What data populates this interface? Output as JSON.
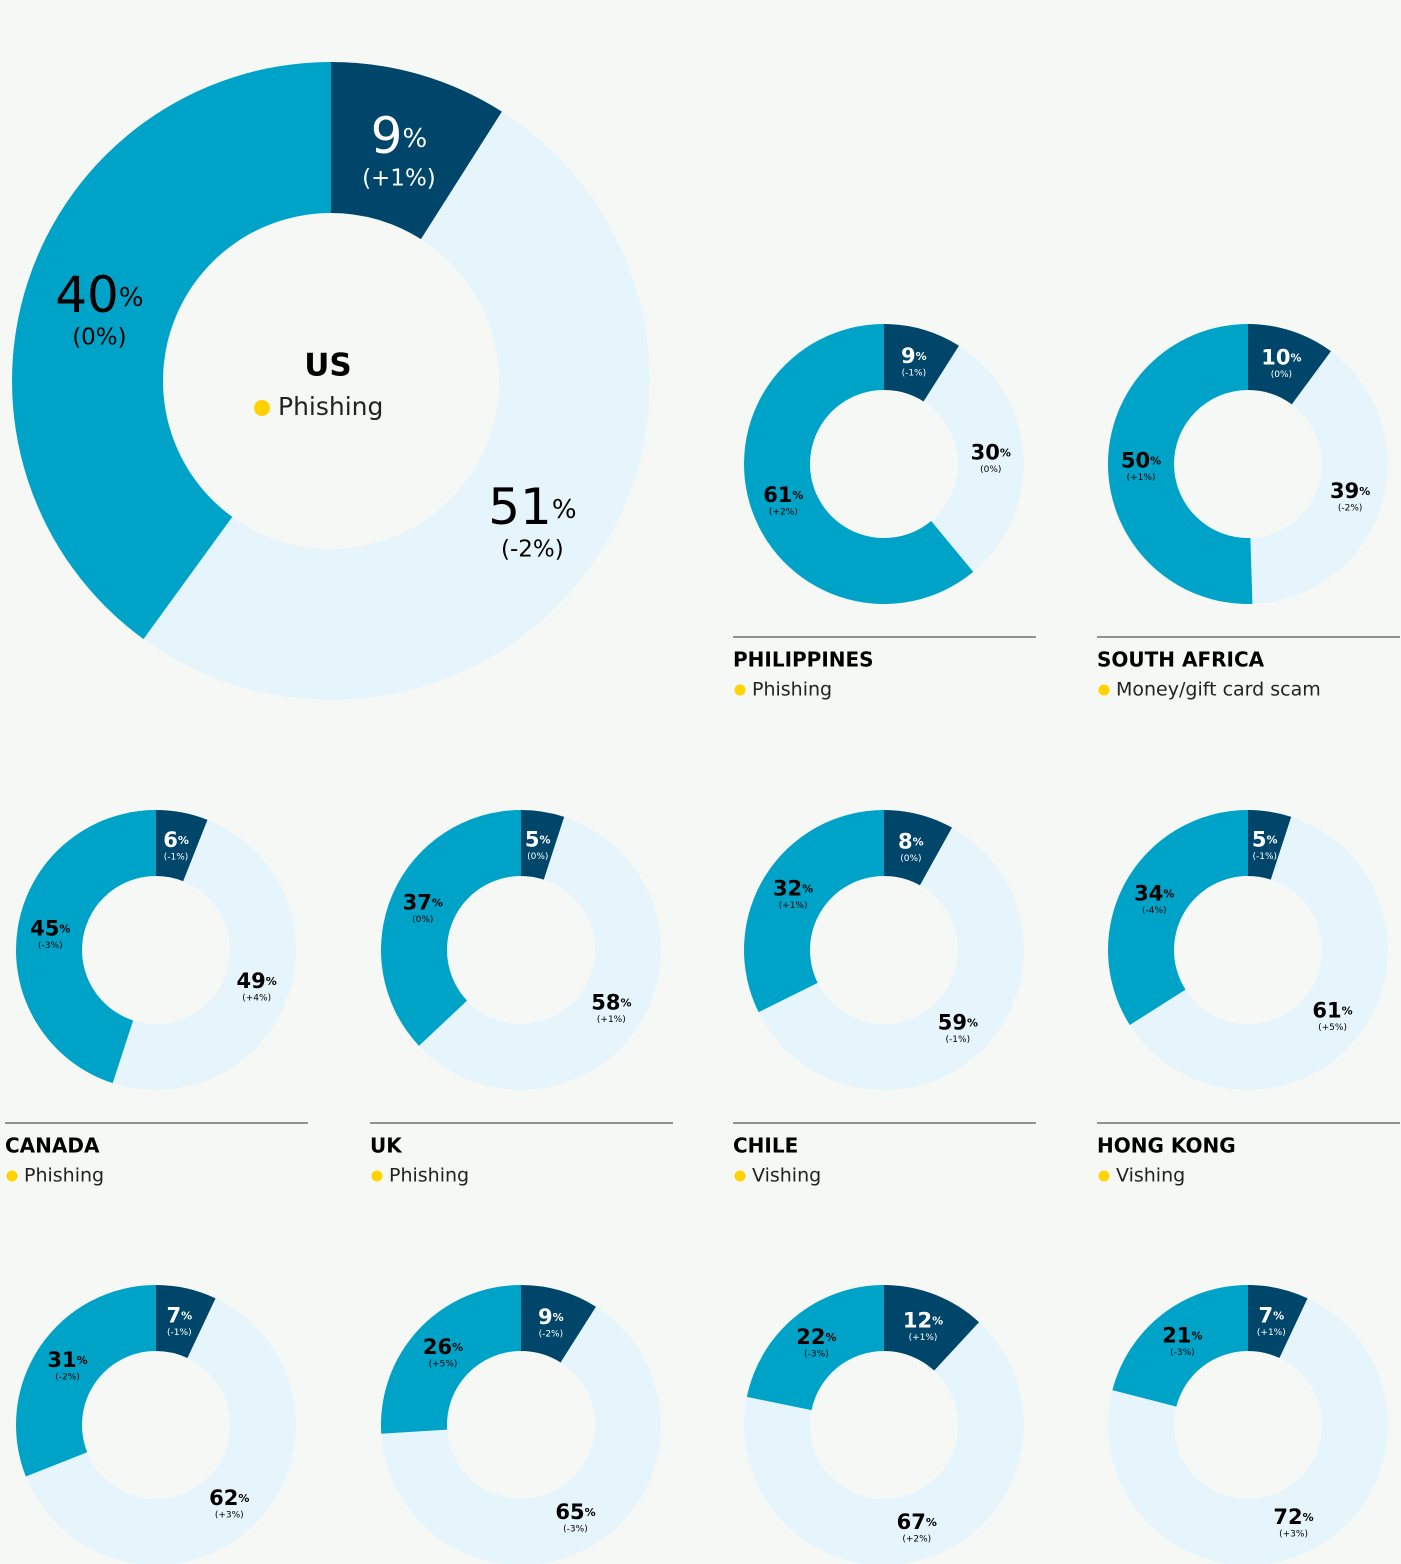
{
  "chart_data": [
    {
      "type": "donut",
      "title": "US",
      "subtitle": "Phishing",
      "unit": "%",
      "values": [
        9,
        51,
        40
      ],
      "changes": [
        "(+1%)",
        "(-2%)",
        "(0%)"
      ],
      "colors": [
        "#00466a",
        "#e6f5fb",
        "#00a3c8"
      ]
    },
    {
      "type": "donut",
      "title": "PHILIPPINES",
      "subtitle": "Phishing",
      "unit": "%",
      "values": [
        9,
        30,
        61
      ],
      "changes": [
        "(-1%)",
        "(0%)",
        "(+2%)"
      ],
      "colors": [
        "#00466a",
        "#e6f5fb",
        "#00a3c8"
      ]
    },
    {
      "type": "donut",
      "title": "SOUTH AFRICA",
      "subtitle": "Money/gift card scam",
      "unit": "%",
      "values": [
        10,
        39,
        50
      ],
      "changes": [
        "(0%)",
        "(-2%)",
        "(+1%)"
      ],
      "colors": [
        "#00466a",
        "#e6f5fb",
        "#00a3c8"
      ]
    },
    {
      "type": "donut",
      "title": "CANADA",
      "subtitle": "Phishing",
      "unit": "%",
      "values": [
        6,
        49,
        45
      ],
      "changes": [
        "(-1%)",
        "(+4%)",
        "(-3%)"
      ],
      "colors": [
        "#00466a",
        "#e6f5fb",
        "#00a3c8"
      ]
    },
    {
      "type": "donut",
      "title": "UK",
      "subtitle": "Phishing",
      "unit": "%",
      "values": [
        5,
        58,
        37
      ],
      "changes": [
        "(0%)",
        "(+1%)",
        "(0%)"
      ],
      "colors": [
        "#00466a",
        "#e6f5fb",
        "#00a3c8"
      ]
    },
    {
      "type": "donut",
      "title": "CHILE",
      "subtitle": "Vishing",
      "unit": "%",
      "values": [
        8,
        59,
        32
      ],
      "changes": [
        "(0%)",
        "(-1%)",
        "(+1%)"
      ],
      "colors": [
        "#00466a",
        "#e6f5fb",
        "#00a3c8"
      ]
    },
    {
      "type": "donut",
      "title": "HONG KONG",
      "subtitle": "Vishing",
      "unit": "%",
      "values": [
        5,
        61,
        34
      ],
      "changes": [
        "(-1%)",
        "(+5%)",
        "(-4%)"
      ],
      "colors": [
        "#00466a",
        "#e6f5fb",
        "#00a3c8"
      ]
    },
    {
      "type": "donut",
      "unit": "%",
      "values": [
        7,
        62,
        31
      ],
      "changes": [
        "(-1%)",
        "(+3%)",
        "(-2%)"
      ],
      "colors": [
        "#00466a",
        "#e6f5fb",
        "#00a3c8"
      ]
    },
    {
      "type": "donut",
      "unit": "%",
      "values": [
        9,
        65,
        26
      ],
      "changes": [
        "(-2%)",
        "(-3%)",
        "(+5%)"
      ],
      "colors": [
        "#00466a",
        "#e6f5fb",
        "#00a3c8"
      ]
    },
    {
      "type": "donut",
      "unit": "%",
      "values": [
        12,
        67,
        22
      ],
      "changes": [
        "(+1%)",
        "(+2%)",
        "(-3%)"
      ],
      "colors": [
        "#00466a",
        "#e6f5fb",
        "#00a3c8"
      ]
    },
    {
      "type": "donut",
      "unit": "%",
      "values": [
        7,
        72,
        21
      ],
      "changes": [
        "(+1%)",
        "(+3%)",
        "(-3%)"
      ],
      "colors": [
        "#00466a",
        "#e6f5fb",
        "#00a3c8"
      ]
    }
  ]
}
